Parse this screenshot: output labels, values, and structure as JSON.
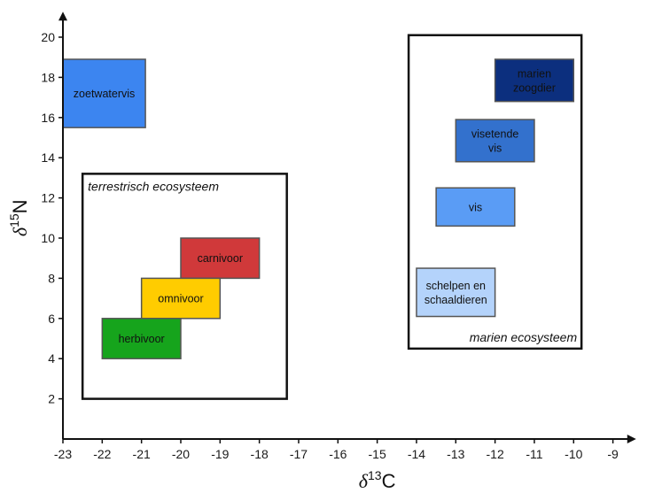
{
  "chart_data": {
    "type": "box",
    "xlim": [
      -23,
      -8.5
    ],
    "ylim": [
      0,
      21
    ],
    "xticks": [
      -23,
      -22,
      -21,
      -20,
      -19,
      -18,
      -17,
      -16,
      -15,
      -14,
      -13,
      -12,
      -11,
      -10,
      -9
    ],
    "yticks": [
      2,
      4,
      6,
      8,
      10,
      12,
      14,
      16,
      18,
      20
    ],
    "xlabel": {
      "symbol": "δ",
      "sup": "13",
      "tail": "C"
    },
    "ylabel": {
      "symbol": "δ",
      "sup": "15",
      "tail": "N"
    },
    "grid": false,
    "ecosystems": [
      {
        "key": "terrestrial",
        "label": "terrestrisch ecosysteem",
        "x": [
          -22.5,
          -17.3
        ],
        "y": [
          2,
          13.2
        ],
        "label_position": "top-left"
      },
      {
        "key": "marine",
        "label": "marien ecosysteem",
        "x": [
          -14.2,
          -9.8
        ],
        "y": [
          4.5,
          20.1
        ],
        "label_position": "bottom-right"
      }
    ],
    "groups": [
      {
        "key": "zoetwatervis",
        "lines": [
          "zoetwatervis"
        ],
        "x": [
          -23,
          -20.9
        ],
        "y": [
          15.5,
          18.9
        ],
        "color": "#3c85f0",
        "text_color": "#111111"
      },
      {
        "key": "carnivoor",
        "lines": [
          "carnivoor"
        ],
        "x": [
          -20,
          -18
        ],
        "y": [
          8,
          10
        ],
        "color": "#d0393a",
        "text_color": "#111111"
      },
      {
        "key": "omnivoor",
        "lines": [
          "omnivoor"
        ],
        "x": [
          -21,
          -19
        ],
        "y": [
          6,
          8
        ],
        "color": "#ffcc00",
        "text_color": "#111111"
      },
      {
        "key": "herbivoor",
        "lines": [
          "herbivoor"
        ],
        "x": [
          -22,
          -20
        ],
        "y": [
          4,
          6
        ],
        "color": "#16a41c",
        "text_color": "#111111"
      },
      {
        "key": "marien-zoogdier",
        "lines": [
          "marien",
          "zoogdier"
        ],
        "x": [
          -12,
          -10
        ],
        "y": [
          16.8,
          18.9
        ],
        "color": "#0c2f7e",
        "text_color": "#ffffff"
      },
      {
        "key": "visetende-vis",
        "lines": [
          "visetende",
          "vis"
        ],
        "x": [
          -13,
          -11
        ],
        "y": [
          13.8,
          15.9
        ],
        "color": "#3371cd",
        "text_color": "#111111"
      },
      {
        "key": "vis",
        "lines": [
          "vis"
        ],
        "x": [
          -13.5,
          -11.5
        ],
        "y": [
          10.6,
          12.5
        ],
        "color": "#5a9cf5",
        "text_color": "#111111"
      },
      {
        "key": "schelpen-schaaldieren",
        "lines": [
          "schelpen en",
          "schaaldieren"
        ],
        "x": [
          -14,
          -12
        ],
        "y": [
          6.1,
          8.5
        ],
        "color": "#b4d3fb",
        "text_color": "#111111"
      }
    ]
  }
}
